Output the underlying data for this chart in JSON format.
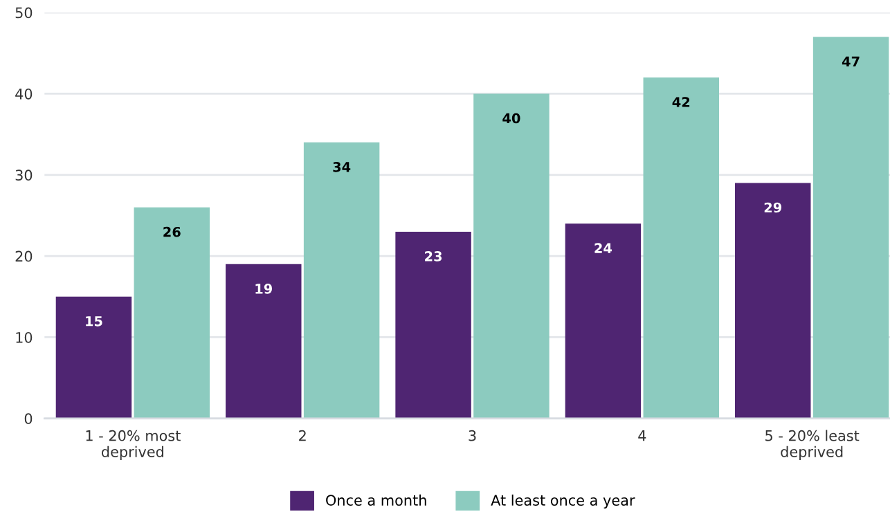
{
  "chart_data": {
    "type": "bar",
    "categories": [
      "1 - 20% most\ndeprived",
      "2",
      "3",
      "4",
      "5 - 20% least\ndeprived"
    ],
    "series": [
      {
        "name": "Once a month",
        "color": "#4f2572",
        "values": [
          15,
          19,
          23,
          24,
          29
        ]
      },
      {
        "name": "At least once a year",
        "color": "#8ccbbf",
        "values": [
          26,
          34,
          40,
          42,
          47
        ]
      }
    ],
    "ylim": [
      0,
      50
    ],
    "yticks": [
      0,
      10,
      20,
      30,
      40,
      50
    ],
    "grid": "y",
    "legend": "bottom",
    "data_labels": true
  }
}
